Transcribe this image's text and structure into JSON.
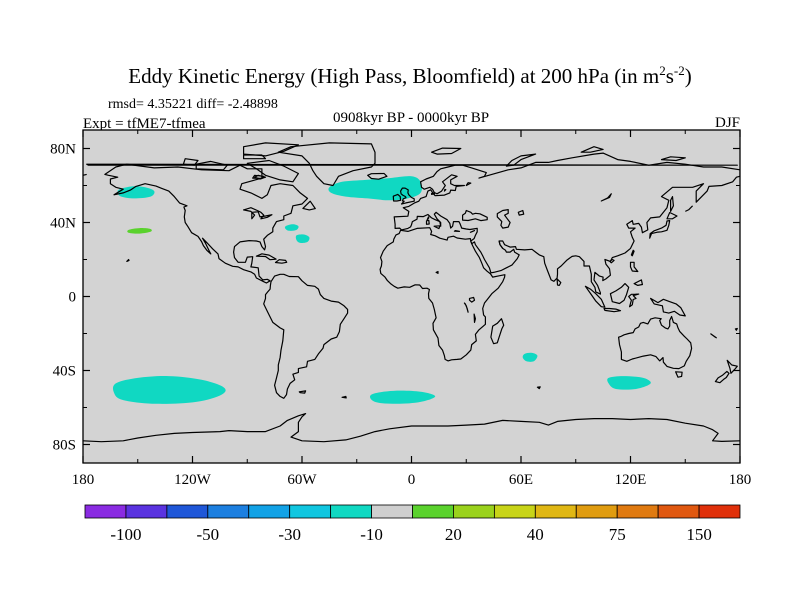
{
  "chart_data": {
    "type": "heatmap",
    "title": "Eddy Kinetic Energy (High Pass, Bloomfield) at 200 hPa (in m",
    "title_units": {
      "base1": "2",
      "mid": "s",
      "base2": "-2",
      "close": ")"
    },
    "stats_text": "rmsd= 4.35221 diff= -2.48898",
    "expt_text": "Expt = tfME7-tfmea",
    "period_text": "0908kyr BP - 0000kyr BP",
    "season_text": "DJF",
    "x_ticks": [
      {
        "lon": -180,
        "label": "180"
      },
      {
        "lon": -120,
        "label": "120W"
      },
      {
        "lon": -60,
        "label": "60W"
      },
      {
        "lon": 0,
        "label": "0"
      },
      {
        "lon": 60,
        "label": "60E"
      },
      {
        "lon": 120,
        "label": "120E"
      },
      {
        "lon": 180,
        "label": "180"
      }
    ],
    "y_ticks": [
      {
        "lat": 80,
        "label": "80N"
      },
      {
        "lat": 40,
        "label": "40N"
      },
      {
        "lat": 0,
        "label": "0"
      },
      {
        "lat": -40,
        "label": "40S"
      },
      {
        "lat": -80,
        "label": "80S"
      }
    ],
    "xlim": [
      -180,
      180
    ],
    "ylim": [
      -90,
      90
    ],
    "background_color": "#d3d3d3",
    "colorbar": {
      "colors": [
        "#8a2be2",
        "#5a33e0",
        "#1f57d8",
        "#1c7fe0",
        "#12a2e6",
        "#10c6e0",
        "#10d8c2",
        "#cfcfcf",
        "#5ad22d",
        "#9ad21c",
        "#c8d418",
        "#e0b714",
        "#e09c10",
        "#e07a10",
        "#e05810",
        "#e0300a"
      ],
      "labels": [
        {
          "boundary": 1,
          "text": "-100"
        },
        {
          "boundary": 3,
          "text": "-50"
        },
        {
          "boundary": 5,
          "text": "-30"
        },
        {
          "boundary": 7,
          "text": "-10"
        },
        {
          "boundary": 9,
          "text": "20"
        },
        {
          "boundary": 11,
          "text": "40"
        },
        {
          "boundary": 13,
          "text": "75"
        },
        {
          "boundary": 15,
          "text": "150"
        }
      ]
    },
    "anomaly_regions": [
      {
        "name": "north-atlantic",
        "category": "-10",
        "color": "#10d8c2",
        "outline": [
          [
            -45,
            59
          ],
          [
            -38,
            62
          ],
          [
            -25,
            63
          ],
          [
            -12,
            64
          ],
          [
            0,
            65
          ],
          [
            5,
            62
          ],
          [
            5,
            56
          ],
          [
            -2,
            53
          ],
          [
            -12,
            52
          ],
          [
            -24,
            53
          ],
          [
            -36,
            54
          ],
          [
            -44,
            56
          ]
        ]
      },
      {
        "name": "north-pacific-east",
        "category": "-10",
        "color": "#10d8c2",
        "outline": [
          [
            -160,
            58
          ],
          [
            -153,
            59.5
          ],
          [
            -146,
            59
          ],
          [
            -141,
            57
          ],
          [
            -143,
            54
          ],
          [
            -152,
            53
          ],
          [
            -159,
            54
          ],
          [
            -161,
            56
          ]
        ]
      },
      {
        "name": "north-pacific-small",
        "category": "20",
        "color": "#5ad22d",
        "outline": [
          [
            -155,
            36
          ],
          [
            -149,
            37
          ],
          [
            -143,
            36.5
          ],
          [
            -143,
            35
          ],
          [
            -149,
            34
          ],
          [
            -155,
            34.5
          ]
        ]
      },
      {
        "name": "west-atlantic-a",
        "category": "-10",
        "color": "#10d8c2",
        "outline": [
          [
            -69,
            38
          ],
          [
            -65,
            39
          ],
          [
            -62,
            38
          ],
          [
            -63,
            36
          ],
          [
            -67,
            35.5
          ],
          [
            -69,
            36.5
          ]
        ]
      },
      {
        "name": "west-atlantic-b",
        "category": "-10",
        "color": "#10d8c2",
        "outline": [
          [
            -63,
            33
          ],
          [
            -59,
            33.5
          ],
          [
            -56,
            32
          ],
          [
            -57,
            29.5
          ],
          [
            -61,
            29
          ],
          [
            -63,
            30.5
          ]
        ]
      },
      {
        "name": "south-pacific",
        "category": "-10",
        "color": "#10d8c2",
        "outline": [
          [
            -162,
            -47
          ],
          [
            -150,
            -44
          ],
          [
            -133,
            -43
          ],
          [
            -115,
            -45
          ],
          [
            -103,
            -49
          ],
          [
            -104,
            -53
          ],
          [
            -118,
            -57
          ],
          [
            -140,
            -58
          ],
          [
            -158,
            -56
          ],
          [
            -163,
            -52
          ]
        ]
      },
      {
        "name": "south-atlantic",
        "category": "-10",
        "color": "#10d8c2",
        "outline": [
          [
            -22,
            -53
          ],
          [
            -10,
            -51
          ],
          [
            5,
            -51.5
          ],
          [
            13,
            -54
          ],
          [
            5,
            -57
          ],
          [
            -8,
            -58
          ],
          [
            -20,
            -57
          ]
        ]
      },
      {
        "name": "south-indian-west",
        "category": "-10",
        "color": "#10d8c2",
        "outline": [
          [
            62,
            -31
          ],
          [
            66,
            -30.5
          ],
          [
            69,
            -32
          ],
          [
            67,
            -35
          ],
          [
            63,
            -35
          ],
          [
            61,
            -33
          ]
        ]
      },
      {
        "name": "south-indian-east",
        "category": "-10",
        "color": "#10d8c2",
        "outline": [
          [
            108,
            -44
          ],
          [
            116,
            -43
          ],
          [
            127,
            -44
          ],
          [
            131,
            -47
          ],
          [
            123,
            -50
          ],
          [
            112,
            -50
          ],
          [
            108,
            -47
          ]
        ]
      }
    ]
  }
}
